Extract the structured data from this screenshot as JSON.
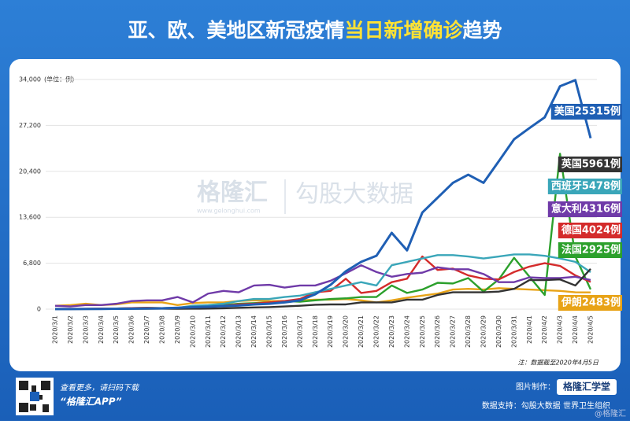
{
  "chart_data": {
    "type": "line",
    "title_parts": [
      "亚、欧、美地区新冠疫情",
      "当日新增确诊",
      "趋势"
    ],
    "unit_label": "(单位：例)",
    "note": "注：数据截至2020年4月5日",
    "categories": [
      "2020/3/1",
      "2020/3/2",
      "2020/3/3",
      "2020/3/4",
      "2020/3/5",
      "2020/3/6",
      "2020/3/7",
      "2020/3/8",
      "2020/3/9",
      "2020/3/10",
      "2020/3/11",
      "2020/3/12",
      "2020/3/13",
      "2020/3/14",
      "2020/3/15",
      "2020/3/16",
      "2020/3/17",
      "2020/3/18",
      "2020/3/19",
      "2020/3/20",
      "2020/3/21",
      "2020/3/22",
      "2020/3/23",
      "2020/3/24",
      "2020/3/25",
      "2020/3/26",
      "2020/3/27",
      "2020/3/28",
      "2020/3/29",
      "2020/3/30",
      "2020/3/31",
      "2020/4/1",
      "2020/4/2",
      "2020/4/3",
      "2020/4/4",
      "2020/4/5"
    ],
    "ylim": [
      0,
      34000
    ],
    "yticks": [
      0,
      {
        "value": 6800,
        "label": "6,800"
      },
      {
        "value": 13600,
        "label": "13,600"
      },
      {
        "value": 20400,
        "label": "20,400"
      },
      {
        "value": 27200,
        "label": "27,200"
      },
      {
        "value": 34000,
        "label": "34,000"
      }
    ],
    "series": [
      {
        "name": "美国",
        "color": "#1f5fb4",
        "label": "美国25315例",
        "values": [
          20,
          20,
          30,
          30,
          60,
          80,
          100,
          120,
          200,
          290,
          370,
          460,
          540,
          700,
          800,
          1000,
          1300,
          2200,
          3600,
          5600,
          7000,
          7900,
          11300,
          8700,
          14300,
          16500,
          18700,
          19900,
          18700,
          21900,
          25150,
          26800,
          28400,
          33000,
          33900,
          25315
        ]
      },
      {
        "name": "英国",
        "color": "#333333",
        "label": "英国5961例",
        "values": [
          10,
          10,
          10,
          20,
          30,
          50,
          50,
          60,
          50,
          60,
          80,
          130,
          200,
          250,
          300,
          400,
          500,
          650,
          700,
          700,
          1000,
          1000,
          1000,
          1400,
          1400,
          2100,
          2500,
          2500,
          2500,
          2600,
          3000,
          4300,
          4300,
          4400,
          3500,
          5961
        ]
      },
      {
        "name": "西班牙",
        "color": "#3aa6b9",
        "label": "西班牙5478例",
        "values": [
          10,
          20,
          30,
          40,
          50,
          60,
          100,
          150,
          200,
          500,
          600,
          800,
          1200,
          1500,
          1500,
          1800,
          2000,
          2500,
          3000,
          3500,
          4000,
          3500,
          6500,
          7000,
          7500,
          8000,
          8000,
          7800,
          7500,
          7800,
          8100,
          8100,
          7900,
          7500,
          7000,
          5478
        ]
      },
      {
        "name": "意大利",
        "color": "#6f3aa8",
        "label": "意大利4316例",
        "values": [
          500,
          400,
          600,
          600,
          800,
          1200,
          1300,
          1300,
          1800,
          1000,
          2300,
          2700,
          2500,
          3500,
          3600,
          3200,
          3500,
          3500,
          4200,
          5300,
          6500,
          5500,
          4800,
          5200,
          5400,
          6200,
          5900,
          5900,
          5200,
          4000,
          4000,
          4700,
          4600,
          4600,
          4800,
          4316
        ]
      },
      {
        "name": "德国",
        "color": "#d42b2b",
        "label": "德国4024例",
        "values": [
          50,
          50,
          50,
          100,
          100,
          150,
          200,
          150,
          200,
          250,
          300,
          500,
          700,
          800,
          1000,
          1200,
          1500,
          2500,
          2700,
          4500,
          2400,
          2700,
          4000,
          4500,
          7800,
          5800,
          6000,
          5000,
          4500,
          4400,
          5500,
          6300,
          6800,
          6400,
          5000,
          4024
        ]
      },
      {
        "name": "法国",
        "color": "#2ca02c",
        "label": "法国2925例",
        "values": [
          30,
          40,
          40,
          60,
          100,
          150,
          200,
          150,
          200,
          400,
          500,
          600,
          800,
          900,
          1000,
          1200,
          1100,
          1300,
          1500,
          1600,
          1800,
          1800,
          3500,
          2400,
          2900,
          3900,
          3800,
          4600,
          2600,
          4400,
          7600,
          4800,
          2100,
          23000,
          7800,
          2925
        ]
      },
      {
        "name": "伊朗",
        "color": "#e8a317",
        "label": "伊朗2483例",
        "values": [
          500,
          600,
          800,
          600,
          700,
          1000,
          1000,
          1000,
          600,
          900,
          1000,
          1000,
          1200,
          1300,
          1200,
          1200,
          1300,
          1400,
          1400,
          1500,
          1300,
          1000,
          1300,
          1700,
          2000,
          2300,
          2900,
          3000,
          2900,
          3100,
          3000,
          2900,
          2800,
          2700,
          2500,
          2483
        ]
      }
    ]
  },
  "watermark": {
    "brand": "格隆汇",
    "url": "www.gelonghui.com",
    "partner": "勾股大数据"
  },
  "footer": {
    "more": "查看更多，请扫码下载",
    "app": "“格隆汇APP”",
    "made_by": "图片制作：",
    "school": "格隆汇学堂",
    "source": "数据支持：勾股大数据 世界卫生组织",
    "handle": "@格隆汇"
  }
}
